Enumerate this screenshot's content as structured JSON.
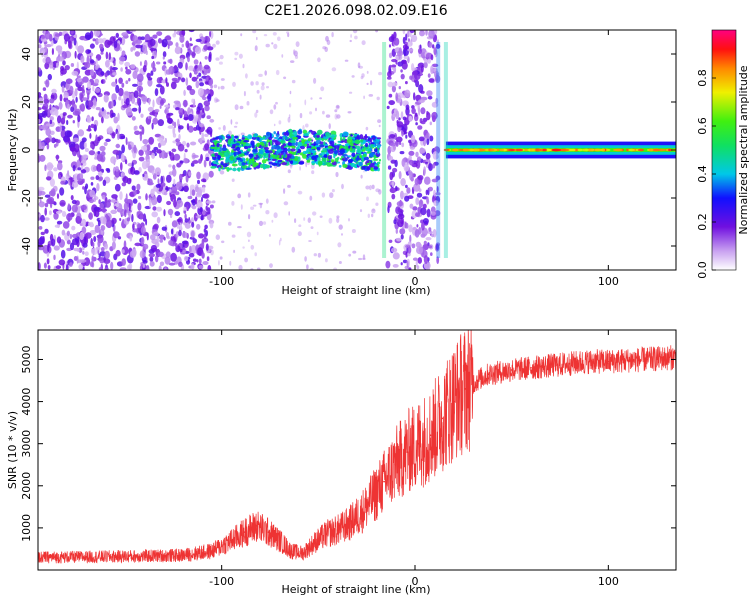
{
  "chart_data": [
    {
      "type": "heatmap",
      "title": "C2E1.2026.098.02.09.E16",
      "xlabel": "Height of straight line (km)",
      "ylabel": "Frequency (Hz)",
      "xlim": [
        -195,
        135
      ],
      "ylim": [
        -50,
        50
      ],
      "x_ticks": [
        -100,
        0,
        100
      ],
      "x_tick_labels": [
        "-100",
        "0",
        "100"
      ],
      "y_ticks": [
        -40,
        -20,
        0,
        20,
        40
      ],
      "y_tick_labels": [
        "-40",
        "-20",
        "0",
        "20",
        "40"
      ],
      "colorbar": {
        "label": "Normalized spectral amplitude",
        "range": [
          0,
          1
        ],
        "ticks": [
          0.0,
          0.2,
          0.4,
          0.6,
          0.8
        ],
        "tick_labels": [
          "0.0",
          "0.2",
          "0.4",
          "0.6",
          "0.8"
        ]
      },
      "features": [
        {
          "name": "noise",
          "x_range": [
            -195,
            -105
          ],
          "freq_band": [
            -50,
            50
          ],
          "amplitude": 0.15
        },
        {
          "name": "wandering-signal",
          "x_range": [
            -105,
            -18
          ],
          "freq_band": [
            -5,
            5
          ],
          "amplitude": 0.35
        },
        {
          "name": "noise-burst",
          "x_range": [
            -14,
            12
          ],
          "freq_band": [
            -50,
            50
          ],
          "amplitude": 0.15
        },
        {
          "name": "carrier",
          "x_range": [
            16,
            135
          ],
          "freq_band": [
            -1.5,
            1.5
          ],
          "amplitude": 0.75
        }
      ]
    },
    {
      "type": "line",
      "xlabel": "Height of straight line (km)",
      "ylabel": "SNR (10 * v/v)",
      "xlim": [
        -195,
        135
      ],
      "ylim": [
        0,
        5700
      ],
      "x_ticks": [
        -100,
        0,
        100
      ],
      "x_tick_labels": [
        "-100",
        "0",
        "100"
      ],
      "y_ticks": [
        1000,
        2000,
        3000,
        4000,
        5000
      ],
      "y_tick_labels": [
        "1000",
        "2000",
        "3000",
        "4000",
        "5000"
      ],
      "series": [
        {
          "name": "SNR",
          "color": "#ee3333",
          "x": [
            -195,
            -170,
            -140,
            -120,
            -105,
            -95,
            -88,
            -82,
            -76,
            -70,
            -64,
            -58,
            -52,
            -46,
            -40,
            -34,
            -28,
            -22,
            -16,
            -10,
            -4,
            2,
            8,
            14,
            20,
            26,
            32,
            38,
            44,
            50,
            60,
            70,
            80,
            90,
            100,
            110,
            120,
            135
          ],
          "values": [
            300,
            310,
            330,
            350,
            450,
            700,
            900,
            1050,
            900,
            700,
            450,
            400,
            650,
            850,
            950,
            1100,
            1350,
            1700,
            2100,
            2500,
            2800,
            3000,
            3200,
            3600,
            4000,
            4300,
            4500,
            4650,
            4700,
            4750,
            4800,
            4850,
            4900,
            4950,
            4950,
            4980,
            5000,
            5050
          ]
        }
      ]
    }
  ]
}
